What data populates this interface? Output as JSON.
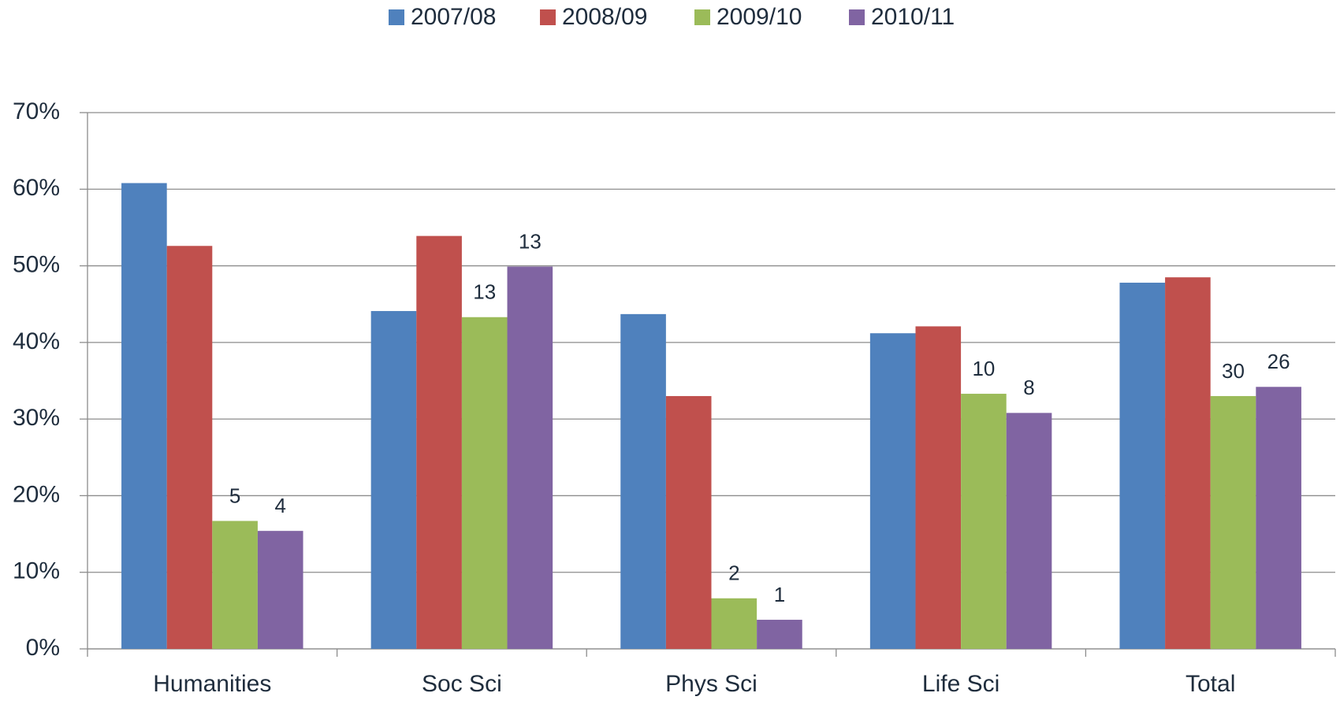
{
  "chart_data": {
    "type": "bar",
    "categories": [
      "Humanities",
      "Soc Sci",
      "Phys Sci",
      "Life Sci",
      "Total"
    ],
    "series": [
      {
        "name": "2007/08",
        "color": "#4f81bd",
        "values": [
          60.8,
          44.1,
          43.7,
          41.2,
          47.8
        ]
      },
      {
        "name": "2008/09",
        "color": "#c0504d",
        "values": [
          52.6,
          53.9,
          33.0,
          42.1,
          48.5
        ]
      },
      {
        "name": "2009/10",
        "color": "#9bbb59",
        "values": [
          16.7,
          43.3,
          6.6,
          33.3,
          33.0
        ],
        "labels": [
          "5",
          "13",
          "2",
          "10",
          "30"
        ]
      },
      {
        "name": "2010/11",
        "color": "#8064a2",
        "values": [
          15.4,
          49.9,
          3.8,
          30.8,
          34.2
        ],
        "labels": [
          "4",
          "13",
          "1",
          "8",
          "26"
        ]
      }
    ],
    "ylim": [
      0,
      70
    ],
    "yticks": [
      {
        "value": 0,
        "label": "0%"
      },
      {
        "value": 10,
        "label": "10%"
      },
      {
        "value": 20,
        "label": "20%"
      },
      {
        "value": 30,
        "label": "30%"
      },
      {
        "value": 40,
        "label": "40%"
      },
      {
        "value": 50,
        "label": "50%"
      },
      {
        "value": 60,
        "label": "60%"
      },
      {
        "value": 70,
        "label": "70%"
      }
    ],
    "grid": true,
    "legend": "top"
  }
}
